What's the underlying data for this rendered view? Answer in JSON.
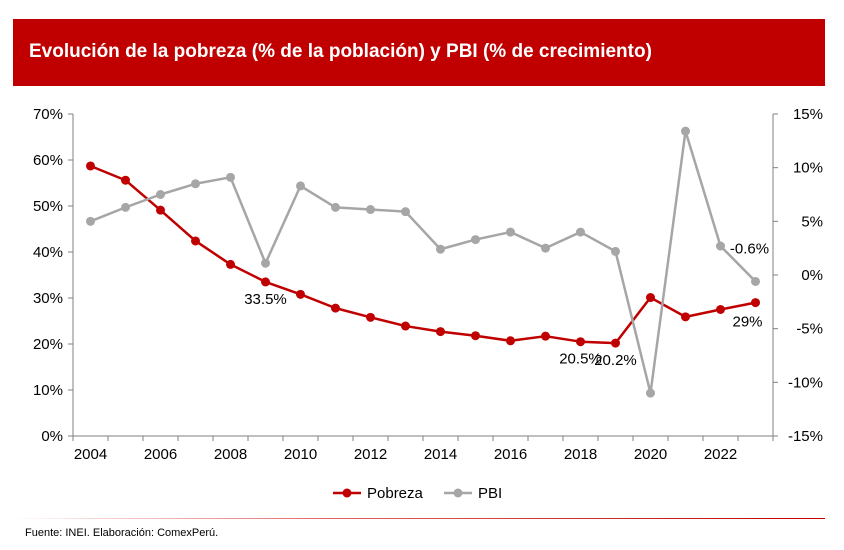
{
  "header": {
    "title": "Evolución de la pobreza (% de la población) y PBI (% de crecimiento)",
    "background": "#c00000"
  },
  "footer": {
    "source": "Fuente: INEI. Elaboración: ComexPerú."
  },
  "chart_data": {
    "type": "line",
    "title": "Evolución de la pobreza (% de la población) y PBI (% de crecimiento)",
    "x": [
      2004,
      2005,
      2006,
      2007,
      2008,
      2009,
      2010,
      2011,
      2012,
      2013,
      2014,
      2015,
      2016,
      2017,
      2018,
      2019,
      2020,
      2021,
      2022,
      2023
    ],
    "x_tick_labels": [
      "2004",
      "2006",
      "2008",
      "2010",
      "2012",
      "2014",
      "2016",
      "2018",
      "2020",
      "2022"
    ],
    "y_left": {
      "ylim": [
        0,
        70
      ],
      "ticks": [
        "0%",
        "10%",
        "20%",
        "30%",
        "40%",
        "50%",
        "60%",
        "70%"
      ]
    },
    "y_right": {
      "ylim": [
        -15,
        15
      ],
      "ticks": [
        "-15%",
        "-10%",
        "-5%",
        "0%",
        "5%",
        "10%",
        "15%"
      ]
    },
    "series": [
      {
        "name": "Pobreza",
        "axis": "left",
        "color": "#c00000",
        "values": [
          58.7,
          55.6,
          49.1,
          42.4,
          37.3,
          33.5,
          30.8,
          27.8,
          25.8,
          23.9,
          22.7,
          21.8,
          20.7,
          21.7,
          20.5,
          20.2,
          30.1,
          25.9,
          27.5,
          29.0
        ]
      },
      {
        "name": "PBI",
        "axis": "right",
        "color": "#a6a6a6",
        "values": [
          5.0,
          6.3,
          7.5,
          8.5,
          9.1,
          1.1,
          8.3,
          6.3,
          6.1,
          5.9,
          2.4,
          3.3,
          4.0,
          2.5,
          4.0,
          2.2,
          -11.0,
          13.4,
          2.7,
          -0.6
        ]
      }
    ],
    "annotations": [
      {
        "text": "33.5%",
        "series": "Pobreza",
        "index": 5
      },
      {
        "text": "20.5%",
        "series": "Pobreza",
        "index": 14
      },
      {
        "text": "20.2%",
        "series": "Pobreza",
        "index": 15
      },
      {
        "text": "29%",
        "series": "Pobreza",
        "index": 19
      },
      {
        "text": "-0.6%",
        "series": "PBI",
        "index": 19
      }
    ],
    "legend": {
      "placement": "bottom-center",
      "items": [
        "Pobreza",
        "PBI"
      ]
    },
    "grid": false
  }
}
